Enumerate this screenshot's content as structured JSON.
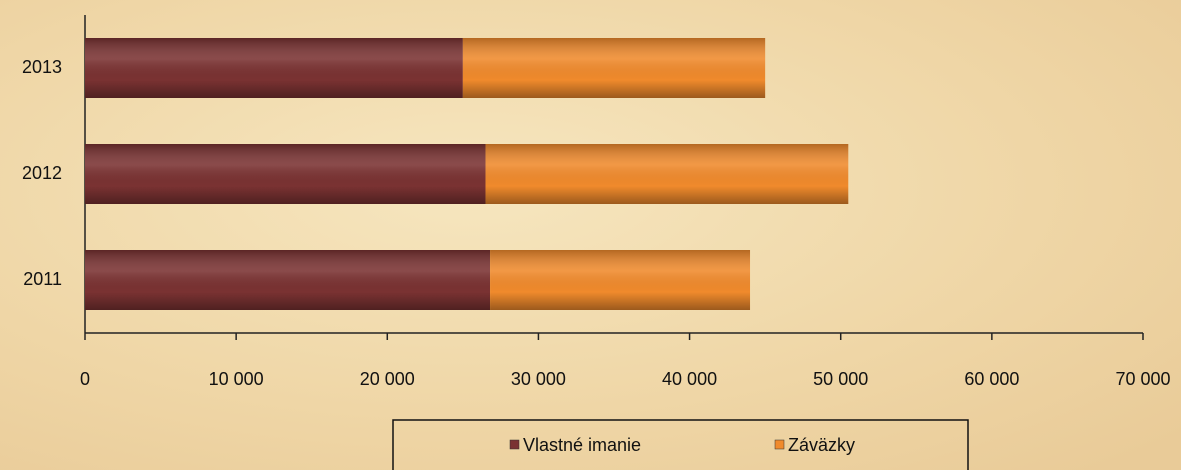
{
  "chart_data": {
    "type": "barh-stacked",
    "categories": [
      "2011",
      "2012",
      "2013"
    ],
    "series": [
      {
        "name": "Vlastné imanie",
        "color": "#7a3232",
        "values": [
          26800,
          26500,
          25000
        ]
      },
      {
        "name": "Záväzky",
        "color": "#f08a2c",
        "values": [
          17200,
          24000,
          20000
        ]
      }
    ],
    "xlim": [
      0,
      70000
    ],
    "xticks": [
      0,
      {
        "value": 10000,
        "label": "10 000"
      },
      {
        "value": 20000,
        "label": "20 000"
      },
      {
        "value": 30000,
        "label": "30 000"
      },
      {
        "value": 40000,
        "label": "40 000"
      },
      {
        "value": 50000,
        "label": "50 000"
      },
      {
        "value": 60000,
        "label": "60 000"
      },
      {
        "value": 70000,
        "label": "70 000"
      }
    ],
    "legend": "bottom"
  }
}
